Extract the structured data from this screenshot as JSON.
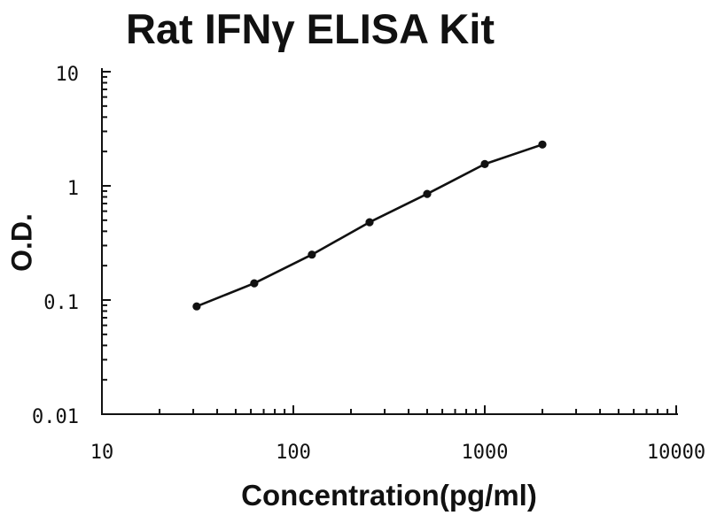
{
  "page": {
    "background": "#ffffff",
    "ink_color": "#111111"
  },
  "chart_data": {
    "type": "line",
    "title": "Rat IFNγ ELISA Kit",
    "xlabel": "Concentration(pg/ml)",
    "ylabel": "O.D.",
    "x_scale": "log",
    "y_scale": "log",
    "xlim": [
      10,
      10000
    ],
    "ylim": [
      0.01,
      10
    ],
    "x_tick_labels": [
      "10",
      "100",
      "1000",
      "10000"
    ],
    "y_tick_labels": [
      "0.01",
      "0.1",
      "1",
      "10"
    ],
    "grid": false,
    "legend_position": "none",
    "line_color": "#111111",
    "marker": "filled-circle",
    "x": [
      31.25,
      62.5,
      125,
      250,
      500,
      1000,
      2000
    ],
    "y": [
      0.088,
      0.14,
      0.25,
      0.48,
      0.85,
      1.55,
      2.3
    ]
  }
}
